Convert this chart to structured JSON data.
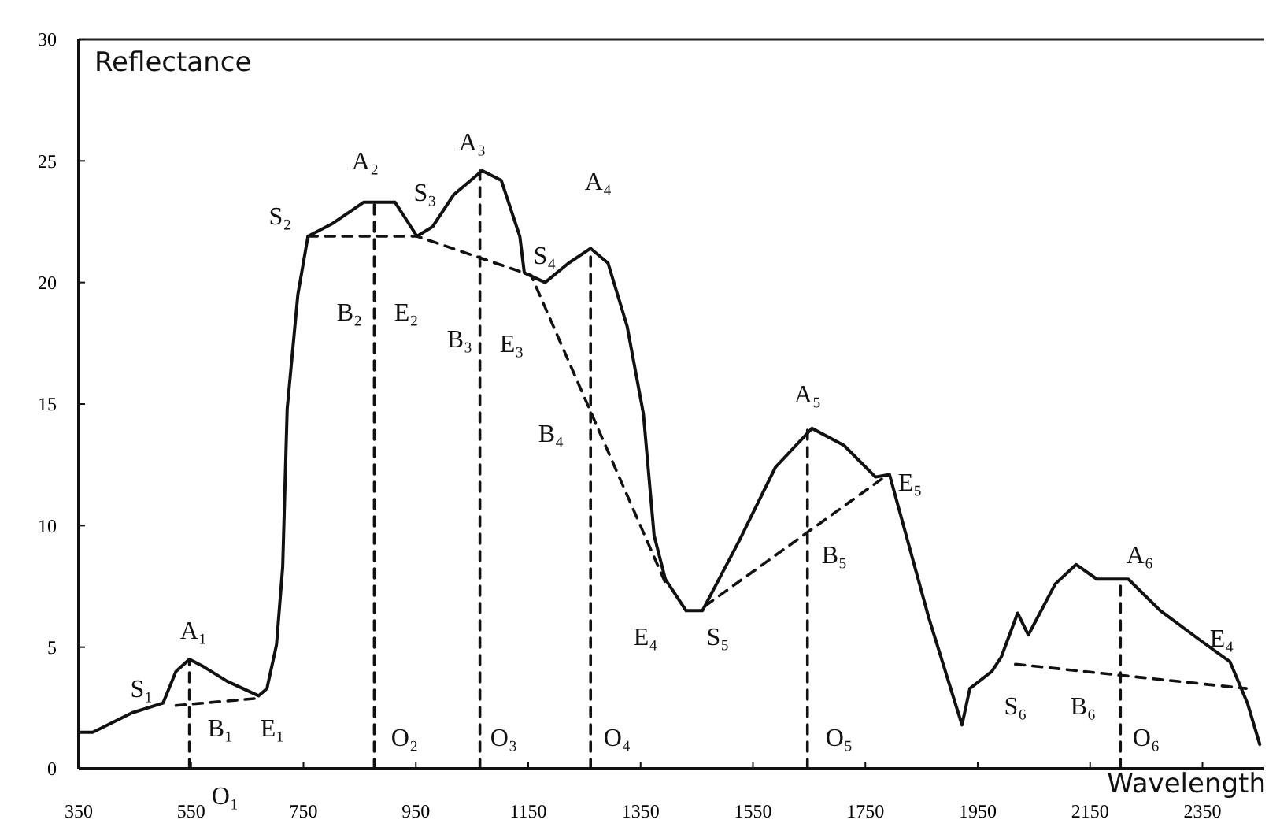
{
  "chart_data": {
    "type": "line",
    "xlabel": "Wavelength",
    "ylabel": "Reflectance",
    "xlim": [
      350,
      2460
    ],
    "ylim": [
      0,
      30
    ],
    "xticks": [
      350,
      550,
      750,
      950,
      1150,
      1350,
      1550,
      1750,
      1950,
      2150,
      2350
    ],
    "yticks": [
      0,
      5,
      10,
      15,
      20,
      25,
      30
    ],
    "grid": false,
    "series": [
      {
        "color": "#111111",
        "line_style": "solid",
        "x": [
          350,
          375,
          445,
          500,
          523,
          547,
          572,
          614,
          670,
          685,
          702,
          713,
          721,
          740,
          758,
          800,
          857,
          913,
          952,
          980,
          1017,
          1068,
          1102,
          1135,
          1143,
          1180,
          1222,
          1261,
          1292,
          1326,
          1355,
          1374,
          1394,
          1431,
          1460,
          1526,
          1590,
          1655,
          1712,
          1768,
          1793,
          1863,
          1922,
          1936,
          1975,
          1992,
          2021,
          2040,
          2088,
          2125,
          2162,
          2218,
          2275,
          2351,
          2399,
          2430,
          2452
        ],
        "values": [
          1.5,
          1.5,
          2.3,
          2.7,
          4.0,
          4.5,
          4.2,
          3.6,
          3.0,
          3.3,
          5.1,
          8.3,
          14.8,
          19.5,
          21.9,
          22.4,
          23.3,
          23.3,
          21.9,
          22.3,
          23.6,
          24.6,
          24.2,
          21.9,
          20.4,
          20.0,
          20.8,
          21.4,
          20.8,
          18.2,
          14.6,
          9.6,
          7.8,
          6.5,
          6.5,
          9.4,
          12.4,
          14.0,
          13.3,
          12.0,
          12.1,
          6.2,
          1.8,
          3.3,
          4.0,
          4.6,
          6.4,
          5.5,
          7.6,
          8.4,
          7.8,
          7.8,
          6.5,
          5.2,
          4.4,
          2.7,
          1.0
        ]
      },
      {
        "color": "#111111",
        "line_style": "dashed",
        "x": [
          523,
          670
        ],
        "values": [
          2.6,
          2.9
        ]
      },
      {
        "color": "#111111",
        "line_style": "dashed",
        "x": [
          758,
          952,
          1155,
          1395
        ],
        "values": [
          21.9,
          21.9,
          20.3,
          7.6
        ]
      },
      {
        "color": "#111111",
        "line_style": "dashed",
        "x": [
          1465,
          1790
        ],
        "values": [
          6.7,
          12.1
        ]
      },
      {
        "color": "#111111",
        "line_style": "dashed",
        "x": [
          2017,
          2428
        ],
        "values": [
          4.3,
          3.3
        ]
      },
      {
        "color": "#111111",
        "line_style": "dashed",
        "x": [
          547,
          547
        ],
        "values": [
          0,
          4.4
        ]
      },
      {
        "color": "#111111",
        "line_style": "dashed",
        "x": [
          876,
          876
        ],
        "values": [
          0,
          23.3
        ]
      },
      {
        "color": "#111111",
        "line_style": "dashed",
        "x": [
          1064,
          1064
        ],
        "values": [
          0,
          24.6
        ]
      },
      {
        "color": "#111111",
        "line_style": "dashed",
        "x": [
          1261,
          1261
        ],
        "values": [
          0,
          21.4
        ]
      },
      {
        "color": "#111111",
        "line_style": "dashed",
        "x": [
          1647,
          1647
        ],
        "values": [
          0,
          14.0
        ]
      },
      {
        "color": "#111111",
        "line_style": "dashed",
        "x": [
          2204,
          2204
        ],
        "values": [
          0,
          7.8
        ]
      }
    ],
    "annotations": [
      "S₁",
      "A₁",
      "B₁",
      "E₁",
      "O₁",
      "S₂",
      "A₂",
      "S₃",
      "A₃",
      "S₄",
      "A₄",
      "B₂",
      "E₂",
      "B₃",
      "E₃",
      "B₄",
      "E₄",
      "S₅",
      "A₅",
      "E₅",
      "B₅",
      "O₂",
      "O₃",
      "O₄",
      "O₅",
      "S₆",
      "B₆",
      "A₆",
      "O₆",
      "E₄"
    ]
  }
}
